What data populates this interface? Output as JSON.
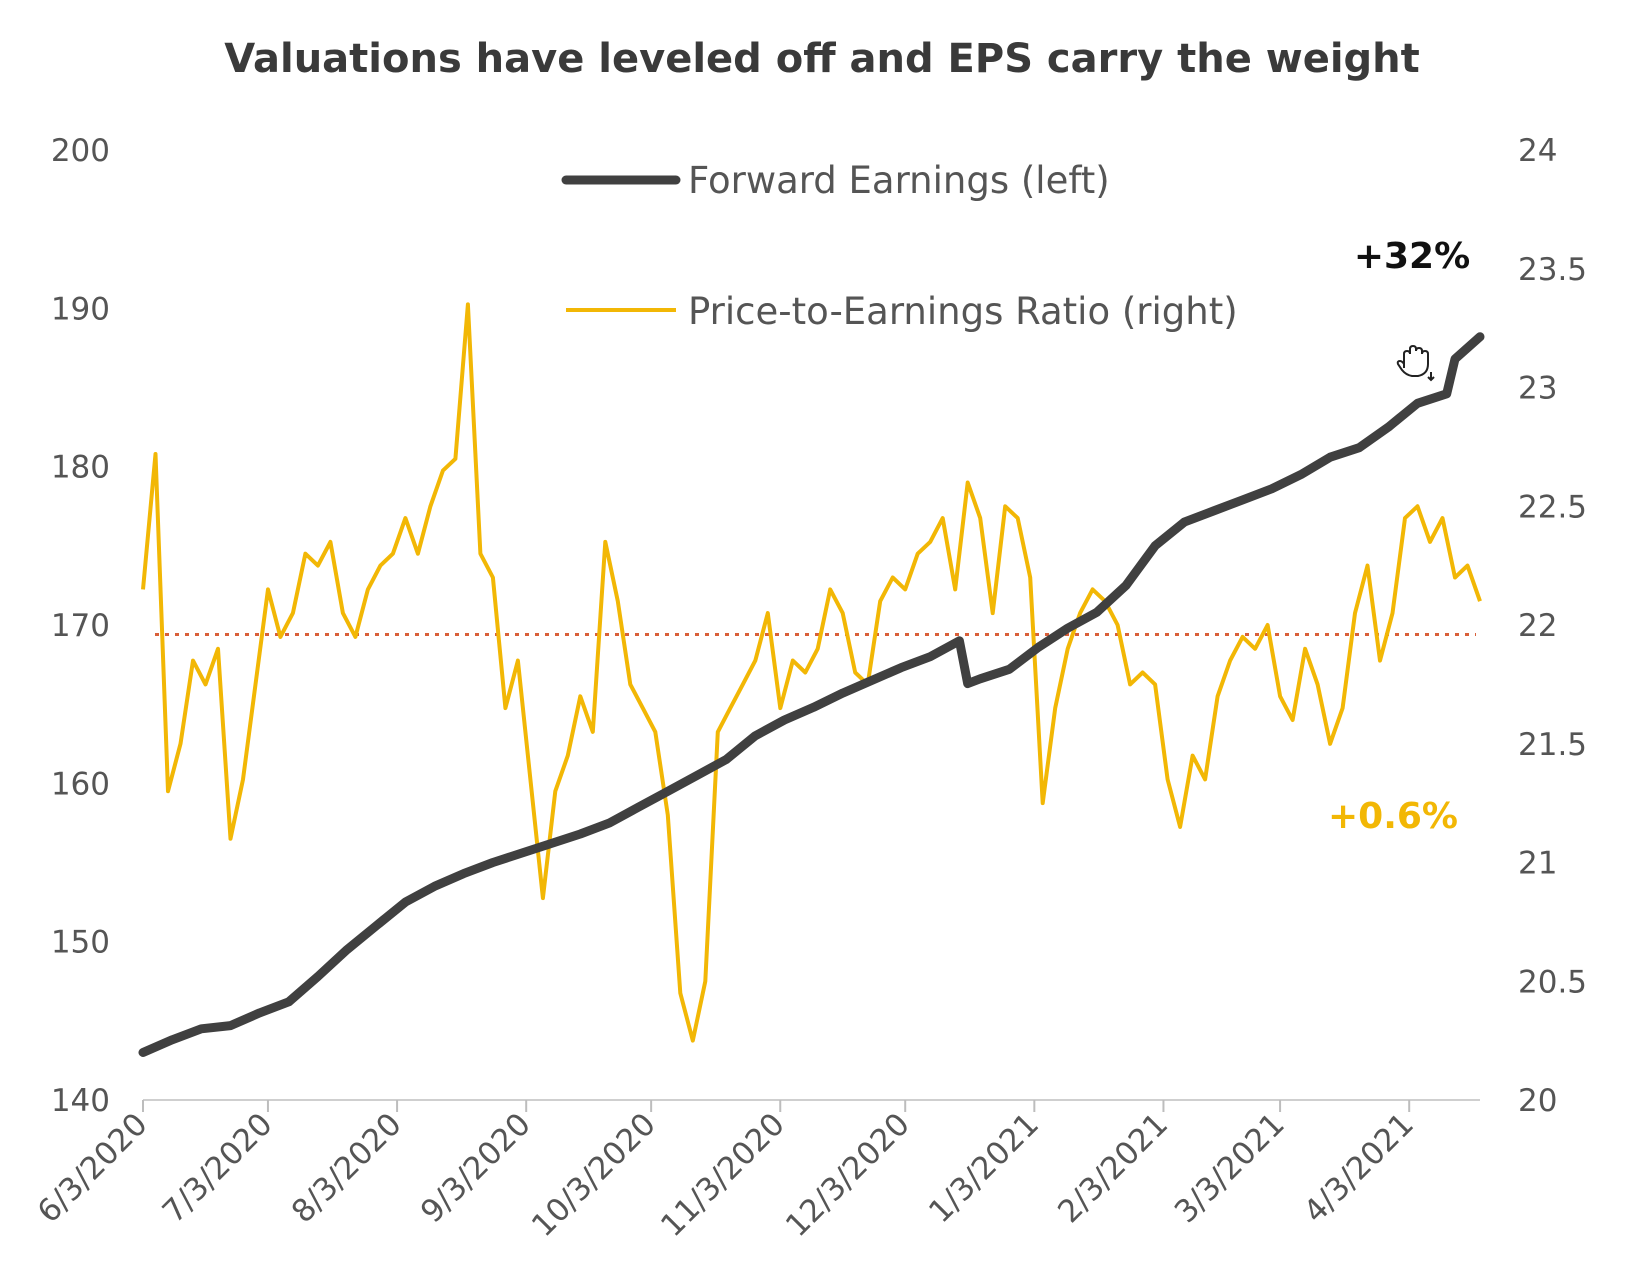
{
  "chart_data": {
    "type": "line",
    "title": "Valuations have leveled off and EPS carry the weight",
    "x_tick_labels": [
      "6/3/2020",
      "7/3/2020",
      "8/3/2020",
      "9/3/2020",
      "10/3/2020",
      "11/3/2020",
      "12/3/2020",
      "1/3/2021",
      "2/3/2021",
      "3/3/2021",
      "4/3/2021"
    ],
    "x_range": [
      "2020-06-03",
      "2021-04-20"
    ],
    "y_left": {
      "range": [
        140,
        200
      ],
      "ticks": [
        "200",
        "190",
        "180",
        "170",
        "160",
        "150",
        "140"
      ]
    },
    "y_right": {
      "range": [
        20,
        24
      ],
      "ticks": [
        "24",
        "23.5",
        "23",
        "22.5",
        "22",
        "21.5",
        "21",
        "20.5",
        "20"
      ]
    },
    "grid": false,
    "legend_position": "top",
    "colors": {
      "forward_earnings": "#404040",
      "pe_ratio": "#f2b705",
      "reference": "#d9603a"
    },
    "series": [
      {
        "name": "Forward Earnings (left)",
        "axis": "left",
        "x": [
          "2020-06-03",
          "2020-06-10",
          "2020-06-17",
          "2020-06-24",
          "2020-07-01",
          "2020-07-08",
          "2020-07-15",
          "2020-07-22",
          "2020-07-29",
          "2020-08-05",
          "2020-08-12",
          "2020-08-19",
          "2020-08-26",
          "2020-09-02",
          "2020-09-09",
          "2020-09-16",
          "2020-09-23",
          "2020-09-30",
          "2020-10-07",
          "2020-10-14",
          "2020-10-21",
          "2020-10-28",
          "2020-11-04",
          "2020-11-11",
          "2020-11-18",
          "2020-11-25",
          "2020-12-02",
          "2020-12-09",
          "2020-12-16",
          "2020-12-18",
          "2020-12-21",
          "2020-12-28",
          "2021-01-04",
          "2021-01-11",
          "2021-01-18",
          "2021-01-25",
          "2021-02-01",
          "2021-02-08",
          "2021-02-15",
          "2021-02-22",
          "2021-03-01",
          "2021-03-08",
          "2021-03-15",
          "2021-03-22",
          "2021-03-29",
          "2021-04-05",
          "2021-04-12",
          "2021-04-14",
          "2021-04-20"
        ],
        "values": [
          143,
          143.8,
          144.5,
          144.7,
          145.5,
          146.2,
          147.8,
          149.5,
          151,
          152.5,
          153.5,
          154.3,
          155,
          155.6,
          156.2,
          156.8,
          157.5,
          158.5,
          159.5,
          160.5,
          161.5,
          163,
          164,
          164.8,
          165.7,
          166.5,
          167.3,
          168,
          169,
          166.3,
          166.6,
          167.2,
          168.6,
          169.8,
          170.8,
          172.5,
          175,
          176.5,
          177.2,
          177.9,
          178.6,
          179.5,
          180.6,
          181.2,
          182.5,
          184,
          184.6,
          186.8,
          188.2
        ]
      },
      {
        "name": "Price-to-Earnings Ratio (right)",
        "axis": "right",
        "x": [
          "2020-06-03",
          "2020-06-06",
          "2020-06-09",
          "2020-06-12",
          "2020-06-15",
          "2020-06-18",
          "2020-06-21",
          "2020-06-24",
          "2020-06-27",
          "2020-06-30",
          "2020-07-03",
          "2020-07-06",
          "2020-07-09",
          "2020-07-12",
          "2020-07-15",
          "2020-07-18",
          "2020-07-21",
          "2020-07-24",
          "2020-07-27",
          "2020-07-30",
          "2020-08-02",
          "2020-08-05",
          "2020-08-08",
          "2020-08-11",
          "2020-08-14",
          "2020-08-17",
          "2020-08-20",
          "2020-08-23",
          "2020-08-26",
          "2020-08-29",
          "2020-09-01",
          "2020-09-04",
          "2020-09-07",
          "2020-09-10",
          "2020-09-13",
          "2020-09-16",
          "2020-09-19",
          "2020-09-22",
          "2020-09-25",
          "2020-09-28",
          "2020-10-01",
          "2020-10-04",
          "2020-10-07",
          "2020-10-10",
          "2020-10-13",
          "2020-10-16",
          "2020-10-19",
          "2020-10-22",
          "2020-10-25",
          "2020-10-28",
          "2020-10-31",
          "2020-11-03",
          "2020-11-06",
          "2020-11-09",
          "2020-11-12",
          "2020-11-15",
          "2020-11-18",
          "2020-11-21",
          "2020-11-24",
          "2020-11-27",
          "2020-11-30",
          "2020-12-03",
          "2020-12-06",
          "2020-12-09",
          "2020-12-12",
          "2020-12-15",
          "2020-12-18",
          "2020-12-21",
          "2020-12-24",
          "2020-12-27",
          "2020-12-30",
          "2021-01-02",
          "2021-01-05",
          "2021-01-08",
          "2021-01-11",
          "2021-01-14",
          "2021-01-17",
          "2021-01-20",
          "2021-01-23",
          "2021-01-26",
          "2021-01-29",
          "2021-02-01",
          "2021-02-04",
          "2021-02-07",
          "2021-02-10",
          "2021-02-13",
          "2021-02-16",
          "2021-02-19",
          "2021-02-22",
          "2021-02-25",
          "2021-02-28",
          "2021-03-03",
          "2021-03-06",
          "2021-03-09",
          "2021-03-12",
          "2021-03-15",
          "2021-03-18",
          "2021-03-21",
          "2021-03-24",
          "2021-03-27",
          "2021-03-30",
          "2021-04-02",
          "2021-04-05",
          "2021-04-08",
          "2021-04-11",
          "2021-04-14",
          "2021-04-17",
          "2021-04-20"
        ],
        "values": [
          22.15,
          22.72,
          21.3,
          21.5,
          21.85,
          21.75,
          21.9,
          21.1,
          21.35,
          21.75,
          22.15,
          21.95,
          22.05,
          22.3,
          22.25,
          22.35,
          22.05,
          21.95,
          22.15,
          22.25,
          22.3,
          22.45,
          22.3,
          22.5,
          22.65,
          22.7,
          23.35,
          22.3,
          22.2,
          21.65,
          21.85,
          21.35,
          20.85,
          21.3,
          21.45,
          21.7,
          21.55,
          22.35,
          22.1,
          21.75,
          21.65,
          21.55,
          21.2,
          20.45,
          20.25,
          20.5,
          21.55,
          21.65,
          21.75,
          21.85,
          22.05,
          21.65,
          21.85,
          21.8,
          21.9,
          22.15,
          22.05,
          21.8,
          21.75,
          22.1,
          22.2,
          22.15,
          22.3,
          22.35,
          22.45,
          22.15,
          22.6,
          22.45,
          22.05,
          22.5,
          22.45,
          22.2,
          21.25,
          21.65,
          21.9,
          22.05,
          22.15,
          22.1,
          22.0,
          21.75,
          21.8,
          21.75,
          21.35,
          21.15,
          21.45,
          21.35,
          21.7,
          21.85,
          21.95,
          21.9,
          22.0,
          21.7,
          21.6,
          21.9,
          21.75,
          21.5,
          21.65,
          22.05,
          22.25,
          21.85,
          22.05,
          22.45,
          22.5,
          22.35,
          22.45,
          22.2,
          22.25,
          22.1
        ]
      }
    ],
    "reference_line": {
      "axis": "right",
      "value": 21.96
    },
    "annotations": [
      {
        "text": "+32%",
        "series": "Forward Earnings (left)"
      },
      {
        "text": "+0.6%",
        "series": "Price-to-Earnings Ratio (right)"
      }
    ]
  }
}
